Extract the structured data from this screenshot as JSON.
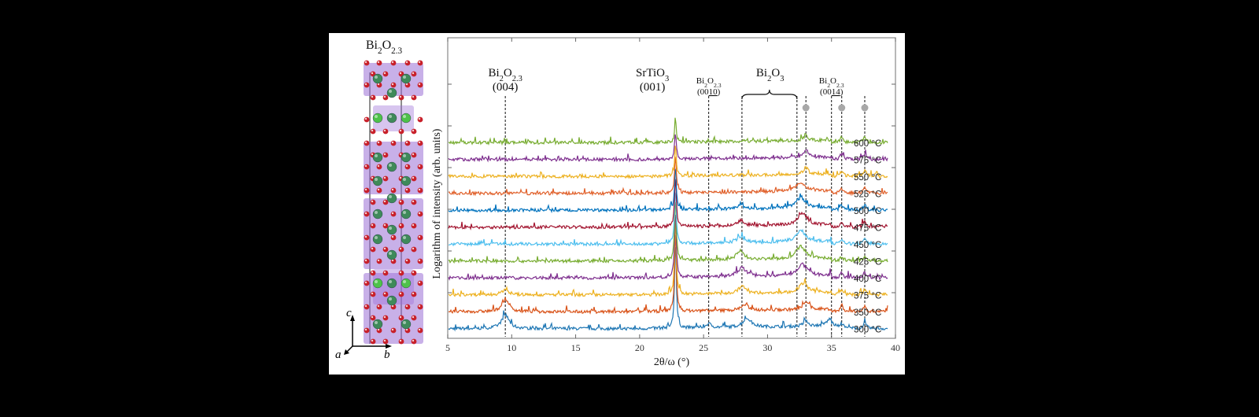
{
  "structure": {
    "title_base": "Bi",
    "title_sub1": "2",
    "title_mid": "O",
    "title_sub2": "2.3",
    "axes": {
      "c": "c",
      "a": "a",
      "b": "b"
    },
    "colors": {
      "bi": "#3f8a5a",
      "bi_light": "#4ec24a",
      "o": "#c8202a",
      "polyhedra": "#9b6fd6"
    }
  },
  "chart_data": {
    "type": "line",
    "title": "",
    "xlabel": "2θ/ω (°)",
    "ylabel": "Logarithm of intensity (arb. units)",
    "xlim": [
      5,
      40
    ],
    "xticks": [
      5,
      10,
      15,
      20,
      25,
      30,
      35,
      40
    ],
    "grid": false,
    "series": [
      {
        "name": "300 °C",
        "color": "#1f77b4",
        "peaks": [
          [
            9.5,
            2.2,
            0.35
          ],
          [
            22.8,
            14,
            0.08
          ],
          [
            25.4,
            0.6,
            0.25
          ],
          [
            28.4,
            1.4,
            0.4
          ],
          [
            33.0,
            1.0,
            0.2
          ],
          [
            34.9,
            1.1,
            0.35
          ],
          [
            35.8,
            0.7,
            0.15
          ],
          [
            37.6,
            0.8,
            0.15
          ]
        ]
      },
      {
        "name": "350 °C",
        "color": "#d95319",
        "peaks": [
          [
            9.5,
            1.9,
            0.35
          ],
          [
            20.5,
            0.9,
            0.05
          ],
          [
            22.8,
            13,
            0.08
          ],
          [
            28.2,
            0.9,
            0.35
          ],
          [
            33.0,
            1.4,
            0.25
          ],
          [
            35.8,
            1.0,
            0.15
          ],
          [
            37.6,
            0.8,
            0.15
          ]
        ]
      },
      {
        "name": "375 °C",
        "color": "#edb120",
        "peaks": [
          [
            9.5,
            0.9,
            0.3
          ],
          [
            22.8,
            12,
            0.08
          ],
          [
            28.0,
            1.1,
            0.35
          ],
          [
            32.8,
            1.5,
            0.4
          ],
          [
            35.8,
            0.8,
            0.15
          ],
          [
            37.6,
            0.7,
            0.15
          ]
        ]
      },
      {
        "name": "400 °C",
        "color": "#7e2f8e",
        "peaks": [
          [
            20.5,
            0.6,
            0.05
          ],
          [
            22.8,
            11,
            0.08
          ],
          [
            28.0,
            1.4,
            0.4
          ],
          [
            32.7,
            1.8,
            0.45
          ],
          [
            35.8,
            0.7,
            0.15
          ],
          [
            37.6,
            0.8,
            0.15
          ]
        ]
      },
      {
        "name": "425 °C",
        "color": "#77ac30",
        "peaks": [
          [
            22.8,
            10,
            0.08
          ],
          [
            27.9,
            1.3,
            0.35
          ],
          [
            32.6,
            2.0,
            0.45
          ],
          [
            35.8,
            0.6,
            0.15
          ],
          [
            37.6,
            0.6,
            0.15
          ]
        ]
      },
      {
        "name": "450 °C",
        "color": "#4dbeee",
        "peaks": [
          [
            22.8,
            9,
            0.08
          ],
          [
            27.9,
            1.0,
            0.35
          ],
          [
            32.6,
            1.8,
            0.45
          ],
          [
            35.8,
            0.7,
            0.15
          ],
          [
            37.6,
            0.7,
            0.15
          ]
        ]
      },
      {
        "name": "475 °C",
        "color": "#a2142f",
        "peaks": [
          [
            22.8,
            8,
            0.08
          ],
          [
            27.9,
            0.8,
            0.35
          ],
          [
            32.7,
            1.9,
            0.4
          ],
          [
            35.8,
            0.8,
            0.15
          ],
          [
            37.6,
            0.9,
            0.15
          ]
        ]
      },
      {
        "name": "500 °C",
        "color": "#0072bd",
        "peaks": [
          [
            22.8,
            7,
            0.08
          ],
          [
            27.9,
            0.6,
            0.3
          ],
          [
            32.6,
            1.7,
            0.45
          ],
          [
            35.8,
            0.8,
            0.15
          ],
          [
            37.6,
            0.8,
            0.15
          ]
        ]
      },
      {
        "name": "525 °C",
        "color": "#e0602a",
        "peaks": [
          [
            22.8,
            6,
            0.08
          ],
          [
            32.6,
            1.3,
            0.45
          ],
          [
            35.8,
            0.8,
            0.15
          ],
          [
            37.6,
            0.8,
            0.15
          ]
        ]
      },
      {
        "name": "550 °C",
        "color": "#edb120",
        "peaks": [
          [
            22.8,
            5,
            0.08
          ],
          [
            33.0,
            1.1,
            0.2
          ],
          [
            35.8,
            0.8,
            0.15
          ],
          [
            37.6,
            0.9,
            0.15
          ]
        ]
      },
      {
        "name": "575 °C",
        "color": "#7e2f8e",
        "peaks": [
          [
            22.8,
            4,
            0.08
          ],
          [
            33.0,
            1.2,
            0.2
          ],
          [
            35.8,
            0.9,
            0.15
          ],
          [
            37.6,
            1.0,
            0.15
          ]
        ]
      },
      {
        "name": "600 °C",
        "color": "#77ac30",
        "peaks": [
          [
            20.5,
            0.7,
            0.05
          ],
          [
            22.8,
            3.5,
            0.08
          ],
          [
            33.0,
            1.1,
            0.15
          ],
          [
            35.8,
            0.9,
            0.12
          ],
          [
            37.6,
            1.0,
            0.12
          ]
        ]
      }
    ],
    "reference_lines": [
      9.5,
      25.4,
      28.0,
      32.3,
      33.0,
      35.0,
      35.8,
      37.6
    ],
    "marker_dots": [
      33.0,
      35.8,
      37.6
    ],
    "annotations": [
      {
        "id": "bi2o23-004",
        "line1_base": "Bi",
        "line1_s1": "2",
        "line1_mid": "O",
        "line1_s2": "2.3",
        "line2": "(004)",
        "x": 9.5,
        "size": "large"
      },
      {
        "id": "srtio3-001",
        "line1_base": "SrTiO",
        "line1_s1": "3",
        "line1_mid": "",
        "line1_s2": "",
        "line2": "(001)",
        "x": 21.0,
        "size": "large"
      },
      {
        "id": "bi2o23-0010",
        "line1_base": "Bi",
        "line1_s1": "2",
        "line1_mid": "O",
        "line1_s2": "2.3",
        "line2_pre": "(00",
        "line2_ul": "10",
        "line2_post": ")",
        "x": 25.4,
        "size": "small"
      },
      {
        "id": "bi2o3",
        "line1_base": "Bi",
        "line1_s1": "2",
        "line1_mid": "O",
        "line1_s2": "3",
        "x": 30.2,
        "size": "large",
        "brace": [
          28.0,
          32.3
        ]
      },
      {
        "id": "bi2o23-0014",
        "line1_base": "Bi",
        "line1_s1": "2",
        "line1_mid": "O",
        "line1_s2": "2.3",
        "line2_pre": "(00",
        "line2_ul": "14",
        "line2_post": ")",
        "x": 35.0,
        "size": "small"
      }
    ],
    "dot_color": "#a8a8a8"
  }
}
